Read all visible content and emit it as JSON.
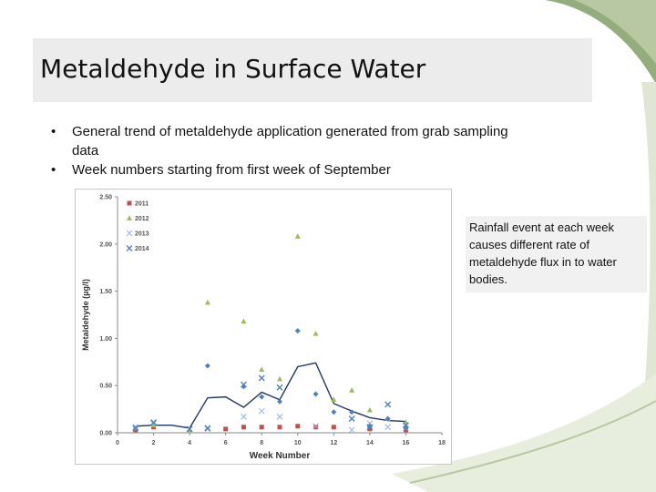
{
  "slide": {
    "title": "Metaldehyde in Surface Water",
    "bullets": [
      "General trend of metaldehyde application generated from grab sampling data",
      "Week numbers starting from first week of September"
    ],
    "bullet_char": "•",
    "note": "Rainfall event at each week causes different rate of metaldehyde flux in to water bodies."
  },
  "colors": {
    "s2011": "#c0504d",
    "s2012": "#9bbb59",
    "s2013": "#8eb4e3",
    "s2014": "#4f81bd",
    "trend": "#1f3864",
    "leaf_dark": "#94ad7c",
    "leaf_light": "#dfe6d4"
  },
  "chart_data": {
    "type": "scatter",
    "xlabel": "Week Number",
    "ylabel": "Metaldehyde (µg/l)",
    "xlim": [
      0,
      18
    ],
    "ylim": [
      0,
      2.5
    ],
    "xticks": [
      "0",
      "2",
      "4",
      "6",
      "8",
      "10",
      "12",
      "14",
      "16",
      "18"
    ],
    "yticks": [
      "0.00",
      "0.50",
      "1.00",
      "1.50",
      "2.00",
      "2.50"
    ],
    "grid": false,
    "legend": "top-left",
    "series": [
      {
        "name": "2011",
        "marker": "square",
        "points": [
          [
            1,
            0.03
          ],
          [
            2,
            0.06
          ],
          [
            6,
            0.04
          ],
          [
            7,
            0.06
          ],
          [
            8,
            0.06
          ],
          [
            9,
            0.06
          ],
          [
            10,
            0.07
          ],
          [
            11,
            0.06
          ],
          [
            12,
            0.06
          ],
          [
            14,
            0.04
          ],
          [
            16,
            0.03
          ]
        ]
      },
      {
        "name": "2012",
        "marker": "triangle",
        "points": [
          [
            1,
            0.05
          ],
          [
            2,
            0.08
          ],
          [
            4,
            0.03
          ],
          [
            5,
            1.38
          ],
          [
            7,
            1.18
          ],
          [
            8,
            0.67
          ],
          [
            9,
            0.57
          ],
          [
            10,
            2.08
          ],
          [
            11,
            1.05
          ],
          [
            12,
            0.35
          ],
          [
            13,
            0.45
          ],
          [
            14,
            0.24
          ],
          [
            15,
            0.15
          ],
          [
            16,
            0.11
          ]
        ]
      },
      {
        "name": "2013",
        "marker": "cross",
        "points": [
          [
            1,
            0.06
          ],
          [
            2,
            0.1
          ],
          [
            5,
            0.04
          ],
          [
            7,
            0.17
          ],
          [
            8,
            0.23
          ],
          [
            9,
            0.17
          ],
          [
            11,
            0.07
          ],
          [
            13,
            0.03
          ],
          [
            14,
            0.1
          ],
          [
            15,
            0.06
          ],
          [
            16,
            0.05
          ]
        ]
      },
      {
        "name": "2014",
        "marker": "x",
        "points": [
          [
            1,
            0.05
          ],
          [
            2,
            0.11
          ],
          [
            4,
            0.04
          ],
          [
            5,
            0.05
          ],
          [
            7,
            0.51
          ],
          [
            8,
            0.58
          ],
          [
            9,
            0.48
          ],
          [
            13,
            0.15
          ],
          [
            14,
            0.06
          ],
          [
            15,
            0.3
          ],
          [
            16,
            0.08
          ]
        ]
      },
      {
        "name": "",
        "marker": "diamond",
        "points": [
          [
            5,
            0.71
          ],
          [
            7,
            0.49
          ],
          [
            8,
            0.38
          ],
          [
            9,
            0.33
          ],
          [
            10,
            1.08
          ],
          [
            11,
            0.41
          ],
          [
            12,
            0.22
          ],
          [
            13,
            0.22
          ],
          [
            14,
            0.07
          ],
          [
            15,
            0.15
          ],
          [
            16,
            0.06
          ]
        ]
      }
    ],
    "trend_line": [
      [
        1,
        0.07
      ],
      [
        2,
        0.08
      ],
      [
        3,
        0.08
      ],
      [
        4,
        0.05
      ],
      [
        5,
        0.37
      ],
      [
        6,
        0.38
      ],
      [
        7,
        0.27
      ],
      [
        8,
        0.43
      ],
      [
        9,
        0.35
      ],
      [
        10,
        0.7
      ],
      [
        11,
        0.74
      ],
      [
        12,
        0.31
      ],
      [
        13,
        0.23
      ],
      [
        14,
        0.16
      ],
      [
        15,
        0.13
      ],
      [
        16,
        0.12
      ]
    ]
  }
}
